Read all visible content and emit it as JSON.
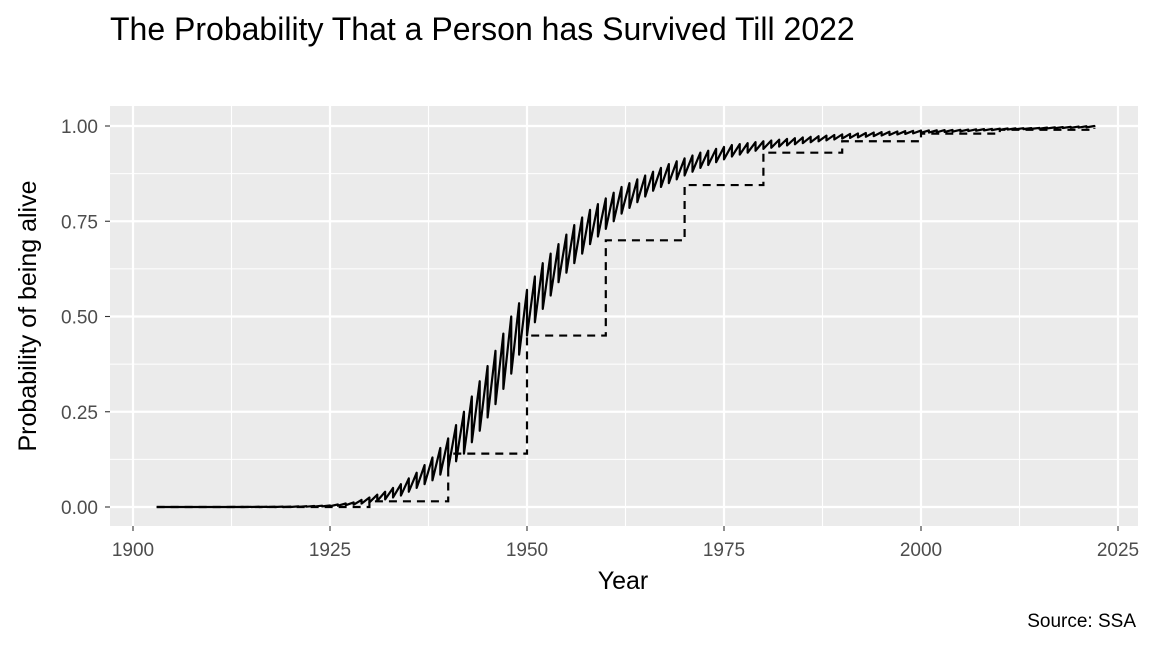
{
  "chart_data": {
    "type": "line",
    "title": "The Probability That a Person has Survived Till 2022",
    "xlabel": "Year",
    "ylabel": "Probability of being alive",
    "caption": "Source: SSA",
    "xlim": [
      1900,
      2025
    ],
    "ylim": [
      0,
      1
    ],
    "x_ticks": [
      1900,
      1925,
      1950,
      1975,
      2000,
      2025
    ],
    "x_tick_labels": [
      "1900",
      "1925",
      "1950",
      "1975",
      "2000",
      "2025"
    ],
    "y_ticks": [
      0,
      0.25,
      0.5,
      0.75,
      1
    ],
    "y_tick_labels": [
      "0.00",
      "0.25",
      "0.50",
      "0.75",
      "1.00"
    ],
    "grid": true,
    "legend": "none",
    "background": "#ebebeb",
    "series": [
      {
        "style": "solid",
        "color": "#000000",
        "oscillating": true,
        "x": [
          1903,
          1910,
          1920,
          1925,
          1928,
          1930,
          1932,
          1934,
          1936,
          1938,
          1940,
          1942,
          1944,
          1946,
          1948,
          1950,
          1952,
          1954,
          1956,
          1958,
          1960,
          1962,
          1964,
          1966,
          1968,
          1970,
          1972,
          1974,
          1976,
          1978,
          1980,
          1985,
          1990,
          1995,
          2000,
          2005,
          2010,
          2015,
          2022
        ],
        "upper": [
          0,
          0,
          0.001,
          0.004,
          0.012,
          0.025,
          0.04,
          0.06,
          0.09,
          0.13,
          0.18,
          0.25,
          0.33,
          0.41,
          0.5,
          0.57,
          0.64,
          0.69,
          0.74,
          0.78,
          0.81,
          0.84,
          0.86,
          0.88,
          0.9,
          0.915,
          0.93,
          0.94,
          0.95,
          0.955,
          0.96,
          0.97,
          0.978,
          0.984,
          0.988,
          0.99,
          0.993,
          0.995,
          1.0
        ],
        "lower": [
          0,
          0,
          0,
          0.002,
          0.006,
          0.012,
          0.02,
          0.03,
          0.05,
          0.07,
          0.1,
          0.14,
          0.2,
          0.27,
          0.35,
          0.45,
          0.52,
          0.59,
          0.64,
          0.69,
          0.73,
          0.77,
          0.8,
          0.83,
          0.85,
          0.87,
          0.89,
          0.905,
          0.92,
          0.93,
          0.94,
          0.955,
          0.967,
          0.975,
          0.982,
          0.986,
          0.99,
          0.993,
          0.997
        ]
      },
      {
        "style": "dashed",
        "color": "#000000",
        "step": true,
        "x": [
          1903,
          1910,
          1920,
          1930,
          1940,
          1950,
          1960,
          1970,
          1980,
          1990,
          2000,
          2010,
          2022
        ],
        "values": [
          0,
          0,
          0,
          0.015,
          0.14,
          0.45,
          0.7,
          0.845,
          0.93,
          0.96,
          0.98,
          0.99,
          0.995
        ]
      }
    ]
  }
}
